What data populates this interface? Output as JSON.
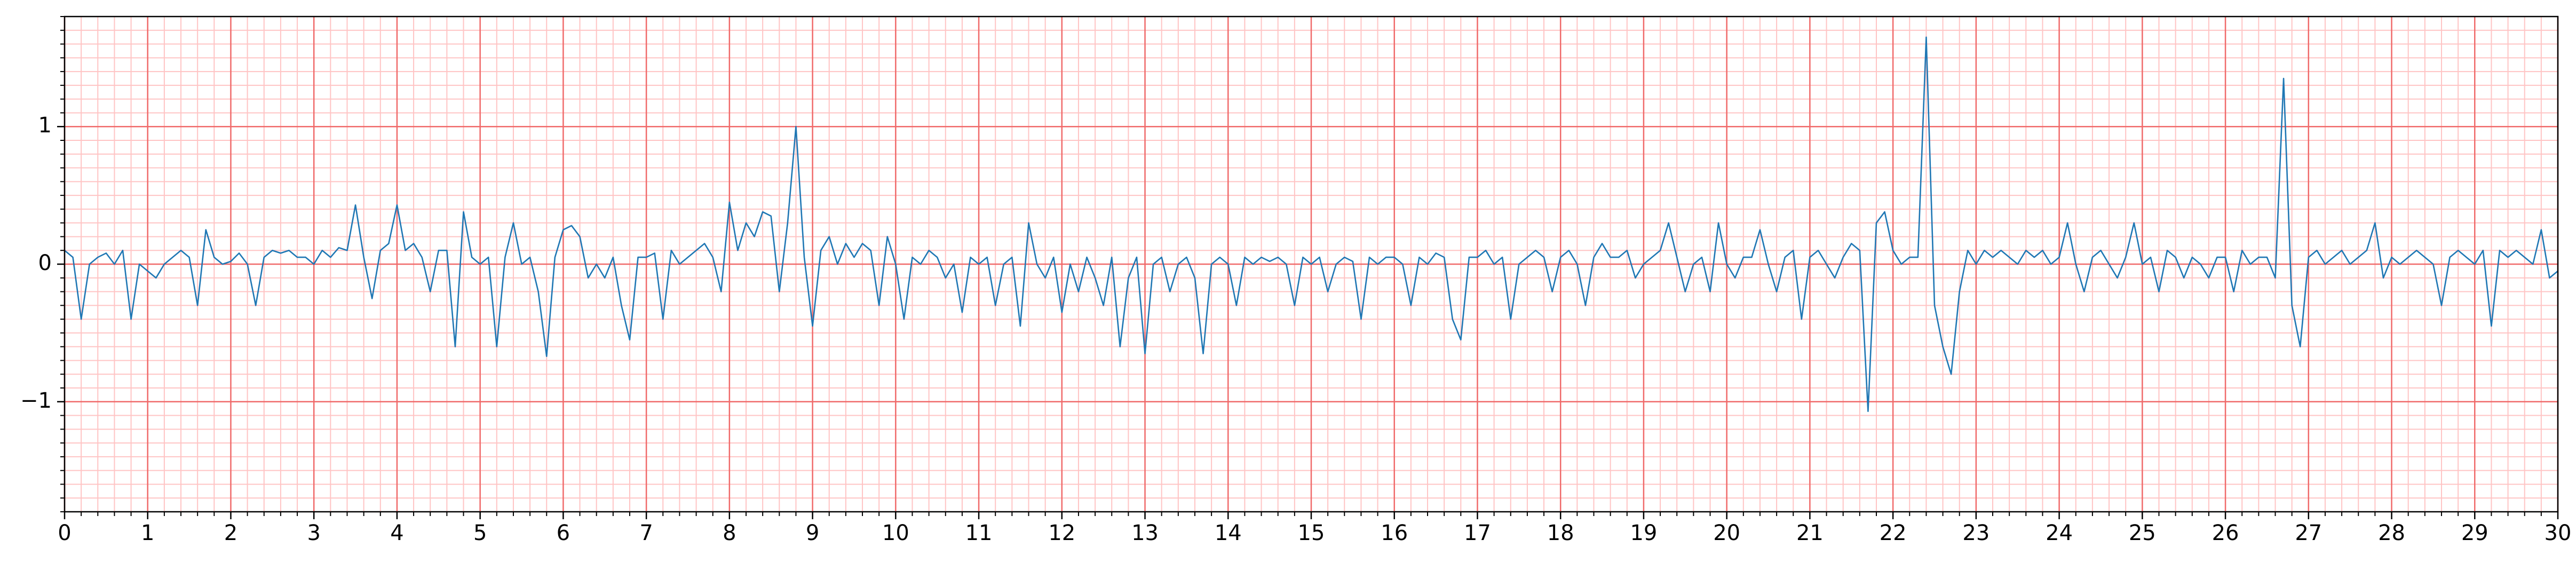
{
  "chart_data": {
    "type": "line",
    "x": [
      0,
      0.1,
      0.2,
      0.3,
      0.4,
      0.5,
      0.6,
      0.7,
      0.8,
      0.9,
      1,
      1.1,
      1.2,
      1.3,
      1.4,
      1.5,
      1.6,
      1.7,
      1.8,
      1.9,
      2,
      2.1,
      2.2,
      2.3,
      2.4,
      2.5,
      2.6,
      2.7,
      2.8,
      2.9,
      3,
      3.1,
      3.2,
      3.3,
      3.4,
      3.5,
      3.6,
      3.7,
      3.8,
      3.9,
      4,
      4.1,
      4.2,
      4.3,
      4.4,
      4.5,
      4.6,
      4.7,
      4.8,
      4.9,
      5,
      5.1,
      5.2,
      5.3,
      5.4,
      5.5,
      5.6,
      5.7,
      5.8,
      5.9,
      6,
      6.1,
      6.2,
      6.3,
      6.4,
      6.5,
      6.6,
      6.7,
      6.8,
      6.9,
      7,
      7.1,
      7.2,
      7.3,
      7.4,
      7.5,
      7.6,
      7.7,
      7.8,
      7.9,
      8,
      8.1,
      8.2,
      8.3,
      8.4,
      8.5,
      8.6,
      8.7,
      8.8,
      8.9,
      9,
      9.1,
      9.2,
      9.3,
      9.4,
      9.5,
      9.6,
      9.7,
      9.8,
      9.9,
      10,
      10.1,
      10.2,
      10.3,
      10.4,
      10.5,
      10.6,
      10.7,
      10.8,
      10.9,
      11,
      11.1,
      11.2,
      11.3,
      11.4,
      11.5,
      11.6,
      11.7,
      11.8,
      11.9,
      12,
      12.1,
      12.2,
      12.3,
      12.4,
      12.5,
      12.6,
      12.7,
      12.8,
      12.9,
      13,
      13.1,
      13.2,
      13.3,
      13.4,
      13.5,
      13.6,
      13.7,
      13.8,
      13.9,
      14,
      14.1,
      14.2,
      14.3,
      14.4,
      14.5,
      14.6,
      14.7,
      14.8,
      14.9,
      15,
      15.1,
      15.2,
      15.3,
      15.4,
      15.5,
      15.6,
      15.7,
      15.8,
      15.9,
      16,
      16.1,
      16.2,
      16.3,
      16.4,
      16.5,
      16.6,
      16.7,
      16.8,
      16.9,
      17,
      17.1,
      17.2,
      17.3,
      17.4,
      17.5,
      17.6,
      17.7,
      17.8,
      17.9,
      18,
      18.1,
      18.2,
      18.3,
      18.4,
      18.5,
      18.6,
      18.7,
      18.8,
      18.9,
      19,
      19.1,
      19.2,
      19.3,
      19.4,
      19.5,
      19.6,
      19.7,
      19.8,
      19.9,
      20,
      20.1,
      20.2,
      20.3,
      20.4,
      20.5,
      20.6,
      20.7,
      20.8,
      20.9,
      21,
      21.1,
      21.2,
      21.3,
      21.4,
      21.5,
      21.6,
      21.7,
      21.8,
      21.9,
      22,
      22.1,
      22.2,
      22.3,
      22.4,
      22.5,
      22.6,
      22.7,
      22.8,
      22.9,
      23,
      23.1,
      23.2,
      23.3,
      23.4,
      23.5,
      23.6,
      23.7,
      23.8,
      23.9,
      24,
      24.1,
      24.2,
      24.3,
      24.4,
      24.5,
      24.6,
      24.7,
      24.8,
      24.9,
      25,
      25.1,
      25.2,
      25.3,
      25.4,
      25.5,
      25.6,
      25.7,
      25.8,
      25.9,
      26,
      26.1,
      26.2,
      26.3,
      26.4,
      26.5,
      26.6,
      26.7,
      26.8,
      26.9,
      27,
      27.1,
      27.2,
      27.3,
      27.4,
      27.5,
      27.6,
      27.7,
      27.8,
      27.9,
      28,
      28.1,
      28.2,
      28.3,
      28.4,
      28.5,
      28.6,
      28.7,
      28.8,
      28.9,
      29,
      29.1,
      29.2,
      29.3,
      29.4,
      29.5,
      29.6,
      29.7,
      29.8,
      29.9,
      30
    ],
    "series": [
      {
        "color": "#1f77b4",
        "values": [
          0.1,
          0.05,
          -0.4,
          0.0,
          0.05,
          0.08,
          0.0,
          0.1,
          -0.4,
          0.0,
          -0.05,
          -0.1,
          0.0,
          0.05,
          0.1,
          0.05,
          -0.3,
          0.25,
          0.05,
          0.0,
          0.02,
          0.08,
          0.0,
          -0.3,
          0.05,
          0.1,
          0.08,
          0.1,
          0.05,
          0.05,
          0.0,
          0.1,
          0.05,
          0.12,
          0.1,
          0.43,
          0.05,
          -0.25,
          0.1,
          0.15,
          0.43,
          0.1,
          0.15,
          0.05,
          -0.2,
          0.1,
          0.1,
          -0.6,
          0.38,
          0.05,
          0.0,
          0.05,
          -0.6,
          0.05,
          0.3,
          0.0,
          0.05,
          -0.2,
          -0.67,
          0.05,
          0.25,
          0.28,
          0.2,
          -0.1,
          0.0,
          -0.1,
          0.05,
          -0.3,
          -0.55,
          0.05,
          0.05,
          0.08,
          -0.4,
          0.1,
          0.0,
          0.05,
          0.1,
          0.15,
          0.05,
          -0.2,
          0.45,
          0.1,
          0.3,
          0.2,
          0.38,
          0.35,
          -0.2,
          0.3,
          1.0,
          0.05,
          -0.45,
          0.1,
          0.2,
          0.0,
          0.15,
          0.05,
          0.15,
          0.1,
          -0.3,
          0.2,
          0.0,
          -0.4,
          0.05,
          0.0,
          0.1,
          0.05,
          -0.1,
          0.0,
          -0.35,
          0.05,
          0.0,
          0.05,
          -0.3,
          0.0,
          0.05,
          -0.45,
          0.3,
          0.0,
          -0.1,
          0.05,
          -0.35,
          0.0,
          -0.2,
          0.05,
          -0.1,
          -0.3,
          0.05,
          -0.6,
          -0.1,
          0.05,
          -0.65,
          0.0,
          0.05,
          -0.2,
          0.0,
          0.05,
          -0.1,
          -0.65,
          0.0,
          0.05,
          0.0,
          -0.3,
          0.05,
          0.0,
          0.05,
          0.02,
          0.05,
          0.0,
          -0.3,
          0.05,
          0.0,
          0.05,
          -0.2,
          0.0,
          0.05,
          0.02,
          -0.4,
          0.05,
          0.0,
          0.05,
          0.05,
          0.0,
          -0.3,
          0.05,
          0.0,
          0.08,
          0.05,
          -0.4,
          -0.55,
          0.05,
          0.05,
          0.1,
          0.0,
          0.05,
          -0.4,
          0.0,
          0.05,
          0.1,
          0.05,
          -0.2,
          0.05,
          0.1,
          0.0,
          -0.3,
          0.05,
          0.15,
          0.05,
          0.05,
          0.1,
          -0.1,
          0.0,
          0.05,
          0.1,
          0.3,
          0.05,
          -0.2,
          0.0,
          0.05,
          -0.2,
          0.3,
          0.0,
          -0.1,
          0.05,
          0.05,
          0.25,
          0.0,
          -0.2,
          0.05,
          0.1,
          -0.4,
          0.05,
          0.1,
          0.0,
          -0.1,
          0.05,
          0.15,
          0.1,
          -1.07,
          0.3,
          0.38,
          0.1,
          0.0,
          0.05,
          0.05,
          1.65,
          -0.3,
          -0.6,
          -0.8,
          -0.2,
          0.1,
          0.0,
          0.1,
          0.05,
          0.1,
          0.05,
          0.0,
          0.1,
          0.05,
          0.1,
          0.0,
          0.05,
          0.3,
          0.0,
          -0.2,
          0.05,
          0.1,
          0.0,
          -0.1,
          0.05,
          0.3,
          0.0,
          0.05,
          -0.2,
          0.1,
          0.05,
          -0.1,
          0.05,
          0.0,
          -0.1,
          0.05,
          0.05,
          -0.2,
          0.1,
          0.0,
          0.05,
          0.05,
          -0.1,
          1.35,
          -0.3,
          -0.6,
          0.05,
          0.1,
          0.0,
          0.05,
          0.1,
          0.0,
          0.05,
          0.1,
          0.3,
          -0.1,
          0.05,
          0.0,
          0.05,
          0.1,
          0.05,
          0.0,
          -0.3,
          0.05,
          0.1,
          0.05,
          0.0,
          0.1,
          -0.45,
          0.1,
          0.05,
          0.1,
          0.05,
          0.0,
          0.25,
          -0.1,
          -0.05
        ]
      }
    ],
    "xlim": [
      0,
      30
    ],
    "ylim": [
      -1.8,
      1.8
    ],
    "xticks": [
      0,
      1,
      2,
      3,
      4,
      5,
      6,
      7,
      8,
      9,
      10,
      11,
      12,
      13,
      14,
      15,
      16,
      17,
      18,
      19,
      20,
      21,
      22,
      23,
      24,
      25,
      26,
      27,
      28,
      29,
      30
    ],
    "yticks": [
      {
        "value": -1,
        "label": "−1"
      },
      0,
      1
    ],
    "grid": true,
    "minor_grid": {
      "x": 0.2,
      "y": 0.1
    }
  }
}
